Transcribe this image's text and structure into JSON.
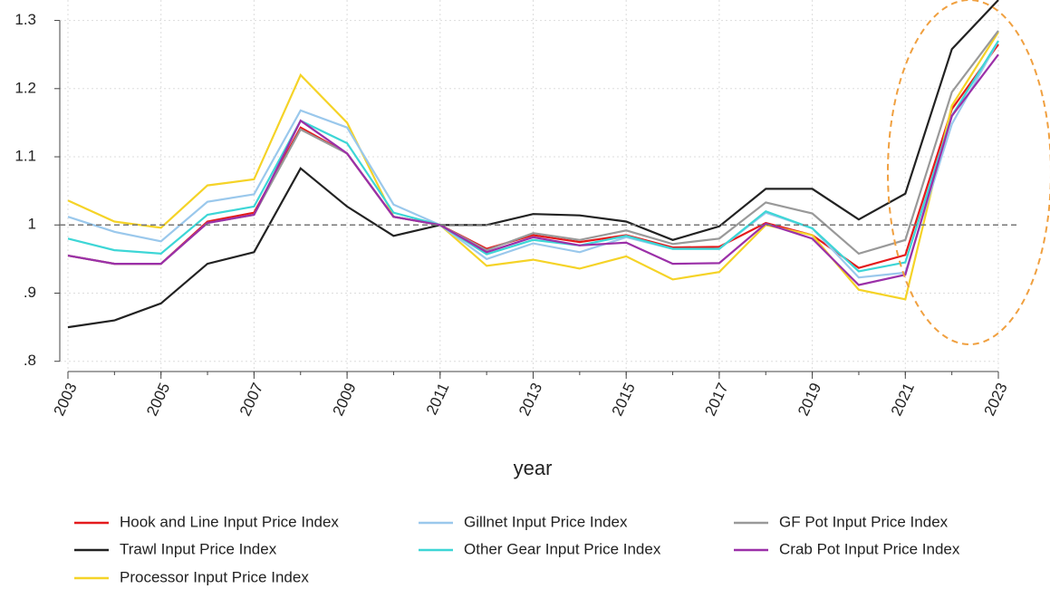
{
  "chart_data": {
    "type": "line",
    "xlabel": "year",
    "x": [
      2003,
      2004,
      2005,
      2006,
      2007,
      2008,
      2009,
      2010,
      2011,
      2012,
      2013,
      2014,
      2015,
      2016,
      2017,
      2018,
      2019,
      2020,
      2021,
      2022,
      2023
    ],
    "xlim": [
      2003,
      2023
    ],
    "xticks": [
      2003,
      2005,
      2007,
      2009,
      2011,
      2013,
      2015,
      2017,
      2019,
      2021,
      2023
    ],
    "ylim": [
      0.785,
      1.33
    ],
    "yticks": [
      {
        "value": 0.8,
        "label": ".8"
      },
      {
        "value": 0.9,
        "label": ".9"
      },
      1,
      1.1,
      1.2,
      1.3
    ],
    "grid": true,
    "reference_line": 1,
    "legend": "bottom",
    "series": [
      {
        "name": "Hook and Line Input Price Index",
        "color": "#e41a1c",
        "values": [
          0.955,
          0.943,
          0.943,
          1.005,
          1.018,
          1.143,
          1.105,
          1.012,
          1.0,
          0.965,
          0.985,
          0.975,
          0.985,
          0.967,
          0.968,
          1.003,
          0.985,
          0.937,
          0.956,
          1.17,
          1.265
        ]
      },
      {
        "name": "Trawl Input Price Index",
        "color": "#222222",
        "values": [
          0.85,
          0.86,
          0.885,
          0.943,
          0.96,
          1.083,
          1.027,
          0.984,
          1.0,
          1.0,
          1.016,
          1.014,
          1.005,
          0.978,
          0.998,
          1.053,
          1.053,
          1.008,
          1.046,
          1.258,
          1.33
        ]
      },
      {
        "name": "Processor Input Price Index",
        "color": "#f5d327",
        "values": [
          1.036,
          1.005,
          0.996,
          1.058,
          1.067,
          1.22,
          1.15,
          1.012,
          1.0,
          0.94,
          0.949,
          0.936,
          0.954,
          0.92,
          0.931,
          1.0,
          0.985,
          0.905,
          0.891,
          1.175,
          1.283
        ]
      },
      {
        "name": "Gillnet Input Price Index",
        "color": "#9ac8ec",
        "values": [
          1.012,
          0.99,
          0.976,
          1.034,
          1.045,
          1.168,
          1.143,
          1.03,
          1.0,
          0.95,
          0.973,
          0.96,
          0.982,
          0.965,
          0.965,
          1.018,
          0.995,
          0.923,
          0.93,
          1.148,
          1.27
        ]
      },
      {
        "name": "Other Gear Input Price Index",
        "color": "#3dd6d6",
        "values": [
          0.98,
          0.963,
          0.958,
          1.015,
          1.027,
          1.153,
          1.12,
          1.018,
          1.0,
          0.957,
          0.978,
          0.97,
          0.984,
          0.965,
          0.965,
          1.02,
          0.995,
          0.932,
          0.945,
          1.16,
          1.27
        ]
      },
      {
        "name": "GF Pot Input Price Index",
        "color": "#999999",
        "values": [
          0.955,
          0.943,
          0.943,
          1.003,
          1.015,
          1.14,
          1.105,
          1.012,
          1.0,
          0.963,
          0.988,
          0.978,
          0.992,
          0.972,
          0.98,
          1.033,
          1.017,
          0.958,
          0.978,
          1.195,
          1.285
        ]
      },
      {
        "name": "Crab Pot Input Price Index",
        "color": "#9b30a8",
        "values": [
          0.955,
          0.943,
          0.943,
          1.003,
          1.015,
          1.153,
          1.105,
          1.012,
          1.0,
          0.96,
          0.982,
          0.97,
          0.974,
          0.943,
          0.944,
          1.002,
          0.98,
          0.912,
          0.927,
          1.16,
          1.25
        ]
      }
    ]
  }
}
